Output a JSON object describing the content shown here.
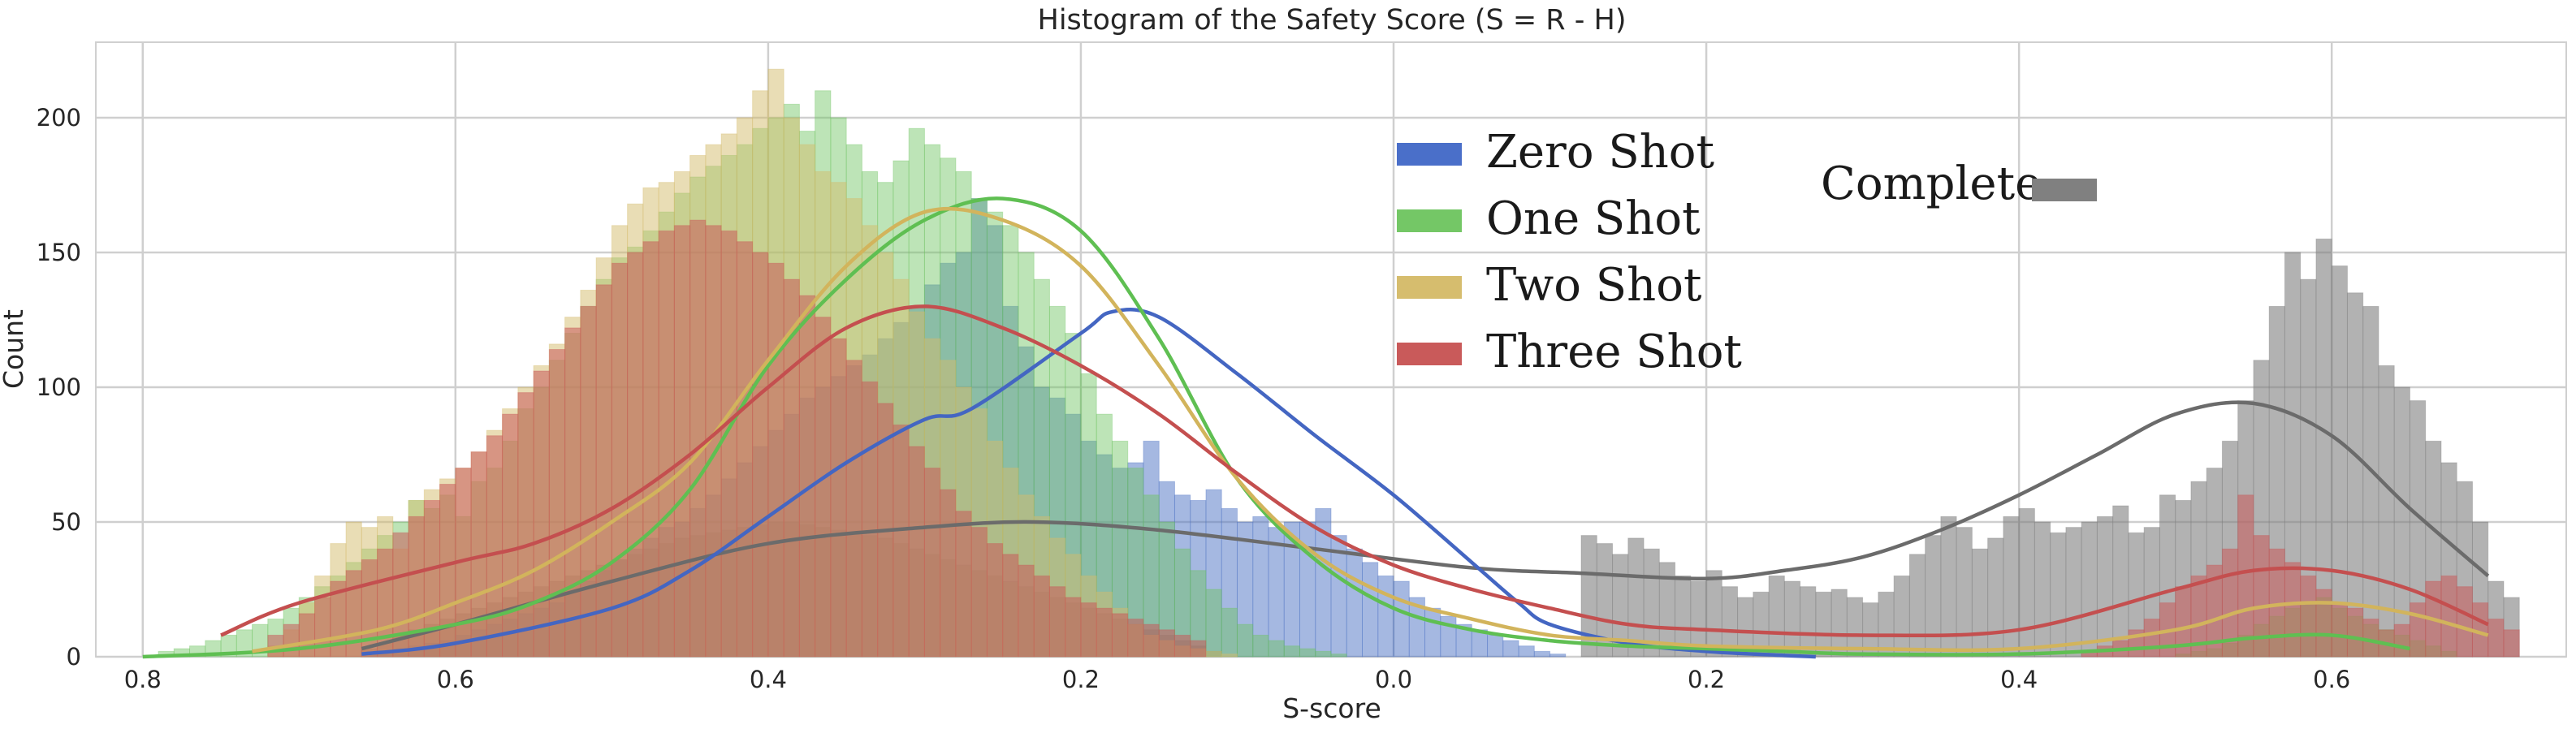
{
  "chart_data": {
    "type": "histogram",
    "title": "Histogram of the Safety Score (S = R - H)",
    "xlabel": "S-score",
    "ylabel": "Count",
    "xlim": [
      -0.83,
      0.75
    ],
    "ylim": [
      0,
      228
    ],
    "grid": true,
    "background": "#ffffff",
    "x_ticks": [
      {
        "value": -0.8,
        "label": "0.8"
      },
      {
        "value": -0.6,
        "label": "0.6"
      },
      {
        "value": -0.4,
        "label": "0.4"
      },
      {
        "value": -0.2,
        "label": "0.2"
      },
      {
        "value": 0.0,
        "label": "0.0"
      },
      {
        "value": 0.2,
        "label": "0.2"
      },
      {
        "value": 0.4,
        "label": "0.4"
      },
      {
        "value": 0.6,
        "label": "0.6"
      }
    ],
    "y_ticks": [
      {
        "value": 0,
        "label": "0"
      },
      {
        "value": 50,
        "label": "50"
      },
      {
        "value": 100,
        "label": "100"
      },
      {
        "value": 150,
        "label": "150"
      },
      {
        "value": 200,
        "label": "200"
      }
    ],
    "legends": [
      {
        "position": "upper-center",
        "entries": [
          "Zero Shot",
          "One Shot",
          "Two Shot",
          "Three Shot"
        ]
      },
      {
        "position": "upper-right",
        "entries": [
          "Complete"
        ]
      }
    ],
    "series": [
      {
        "name": "Complete",
        "color": "#7f7f7f",
        "bin_width": 0.01,
        "x_start": -0.66,
        "counts": [
          3,
          5,
          8,
          10,
          12,
          14,
          16,
          18,
          20,
          22,
          24,
          26,
          28,
          30,
          32,
          34,
          36,
          38,
          40,
          42,
          44,
          45,
          46,
          47,
          48,
          49,
          50,
          50,
          49,
          48,
          47,
          46,
          45,
          44,
          42,
          40,
          38,
          36,
          34,
          32,
          30,
          28,
          26,
          24,
          22,
          20,
          18,
          16,
          14,
          12,
          10,
          8,
          6,
          4,
          2,
          0
        ],
        "kde_x": [
          -0.66,
          -0.6,
          -0.5,
          -0.4,
          -0.3,
          -0.23,
          -0.15,
          -0.05,
          0.05,
          0.12,
          0.2,
          0.25,
          0.3,
          0.35,
          0.4,
          0.45,
          0.5,
          0.55,
          0.6,
          0.65,
          0.7
        ],
        "kde_y": [
          3,
          12,
          28,
          42,
          48,
          50,
          47,
          40,
          33,
          31,
          29,
          32,
          37,
          47,
          60,
          75,
          90,
          94,
          82,
          55,
          30
        ]
      },
      {
        "name": "Complete (right)",
        "color": "#7f7f7f",
        "bin_width": 0.01,
        "x_start": 0.12,
        "counts": [
          45,
          42,
          38,
          44,
          40,
          35,
          30,
          28,
          32,
          26,
          22,
          24,
          30,
          28,
          26,
          24,
          25,
          22,
          20,
          24,
          30,
          38,
          45,
          52,
          48,
          40,
          44,
          52,
          55,
          50,
          46,
          48,
          50,
          52,
          56,
          46,
          48,
          60,
          58,
          65,
          70,
          80,
          95,
          110,
          130,
          150,
          140,
          155,
          145,
          135,
          130,
          108,
          100,
          95,
          80,
          72,
          65,
          50,
          28,
          22
        ],
        "kde_x": [],
        "kde_y": []
      },
      {
        "name": "Zero Shot",
        "color": "#4c72c4",
        "bin_width": 0.01,
        "x_start": -0.66,
        "counts": [
          1,
          2,
          3,
          4,
          5,
          6,
          8,
          10,
          12,
          14,
          16,
          18,
          20,
          24,
          28,
          32,
          36,
          40,
          44,
          48,
          50,
          55,
          60,
          66,
          72,
          78,
          84,
          90,
          96,
          100,
          104,
          108,
          112,
          118,
          124,
          130,
          138,
          146,
          150,
          170,
          160,
          130,
          115,
          100,
          96,
          90,
          80,
          75,
          70,
          72,
          80,
          65,
          60,
          58,
          62,
          55,
          50,
          52,
          48,
          50,
          50,
          55,
          45,
          40,
          35,
          30,
          28,
          22,
          18,
          15,
          12,
          10,
          8,
          6,
          4,
          2,
          1
        ],
        "kde_x": [
          -0.66,
          -0.6,
          -0.5,
          -0.45,
          -0.4,
          -0.35,
          -0.3,
          -0.27,
          -0.2,
          -0.18,
          -0.15,
          -0.1,
          -0.05,
          0.0,
          0.05,
          0.08,
          0.1,
          0.15,
          0.2,
          0.25,
          0.27
        ],
        "kde_y": [
          1,
          5,
          18,
          32,
          52,
          72,
          88,
          92,
          120,
          128,
          126,
          105,
          82,
          60,
          35,
          20,
          12,
          5,
          2,
          0.5,
          0
        ]
      },
      {
        "name": "One Shot",
        "color": "#6cc35f",
        "bin_width": 0.01,
        "x_start": -0.79,
        "counts": [
          2,
          3,
          4,
          6,
          8,
          10,
          12,
          14,
          18,
          22,
          26,
          30,
          35,
          40,
          45,
          50,
          58,
          55,
          60,
          52,
          65,
          70,
          80,
          92,
          100,
          110,
          120,
          130,
          140,
          148,
          152,
          158,
          165,
          172,
          178,
          182,
          186,
          190,
          196,
          200,
          205,
          195,
          210,
          200,
          190,
          180,
          176,
          184,
          196,
          190,
          185,
          180,
          170,
          165,
          160,
          150,
          140,
          130,
          120,
          105,
          90,
          80,
          70,
          60,
          50,
          40,
          32,
          25,
          18,
          12,
          8,
          6,
          4,
          3,
          2,
          1
        ],
        "kde_x": [
          -0.8,
          -0.7,
          -0.6,
          -0.55,
          -0.5,
          -0.45,
          -0.4,
          -0.35,
          -0.3,
          -0.25,
          -0.2,
          -0.15,
          -0.1,
          -0.05,
          0.0,
          0.05,
          0.1,
          0.15,
          0.2,
          0.25,
          0.3,
          0.4,
          0.5,
          0.55,
          0.6,
          0.65
        ],
        "kde_y": [
          0,
          3,
          12,
          20,
          35,
          62,
          108,
          140,
          162,
          170,
          158,
          118,
          66,
          36,
          18,
          10,
          6,
          4,
          3,
          2,
          1,
          1,
          4,
          7,
          8,
          3
        ],
        "right_counts": [
          0,
          0,
          1,
          2,
          3,
          5,
          8,
          12,
          15,
          18,
          20,
          22,
          18,
          15,
          12,
          10,
          8,
          6,
          4,
          2
        ],
        "right_x_start": 0.48
      },
      {
        "name": "Two Shot",
        "color": "#d4bb6b",
        "bin_width": 0.01,
        "x_start": -0.72,
        "counts": [
          4,
          10,
          20,
          30,
          42,
          50,
          48,
          52,
          40,
          58,
          62,
          66,
          70,
          76,
          84,
          92,
          100,
          108,
          116,
          126,
          136,
          148,
          160,
          168,
          174,
          176,
          180,
          186,
          190,
          194,
          200,
          210,
          218,
          200,
          190,
          180,
          176,
          170,
          160,
          150,
          140,
          128,
          118,
          110,
          100,
          92,
          80,
          70,
          60,
          52,
          44,
          38,
          30,
          24,
          18,
          12,
          8,
          6,
          4,
          3,
          2,
          1
        ],
        "kde_x": [
          -0.73,
          -0.65,
          -0.6,
          -0.55,
          -0.5,
          -0.45,
          -0.4,
          -0.35,
          -0.3,
          -0.25,
          -0.2,
          -0.15,
          -0.1,
          -0.05,
          0.0,
          0.05,
          0.1,
          0.15,
          0.2,
          0.3,
          0.4,
          0.5,
          0.55,
          0.6,
          0.65,
          0.7
        ],
        "kde_y": [
          2,
          10,
          20,
          32,
          50,
          72,
          110,
          145,
          165,
          162,
          145,
          108,
          66,
          38,
          22,
          14,
          8,
          6,
          4,
          3,
          3,
          10,
          18,
          20,
          16,
          8
        ]
      },
      {
        "name": "Three Shot",
        "color": "#c85a5a",
        "bin_width": 0.01,
        "x_start": -0.72,
        "counts": [
          8,
          12,
          16,
          22,
          28,
          32,
          36,
          40,
          46,
          52,
          58,
          64,
          70,
          76,
          82,
          90,
          98,
          106,
          114,
          122,
          130,
          138,
          146,
          150,
          154,
          158,
          160,
          162,
          160,
          158,
          154,
          150,
          146,
          140,
          134,
          126,
          118,
          110,
          102,
          94,
          86,
          78,
          70,
          62,
          54,
          48,
          42,
          38,
          34,
          30,
          26,
          22,
          20,
          18,
          16,
          14,
          12,
          10,
          8,
          6
        ],
        "kde_x": [
          -0.75,
          -0.7,
          -0.6,
          -0.55,
          -0.5,
          -0.45,
          -0.4,
          -0.35,
          -0.3,
          -0.25,
          -0.2,
          -0.15,
          -0.1,
          -0.05,
          0.0,
          0.05,
          0.1,
          0.15,
          0.2,
          0.3,
          0.4,
          0.5,
          0.55,
          0.6,
          0.65,
          0.7
        ],
        "kde_y": [
          8,
          20,
          35,
          42,
          55,
          75,
          100,
          122,
          130,
          122,
          108,
          90,
          68,
          48,
          34,
          25,
          18,
          12,
          10,
          8,
          10,
          25,
          32,
          32,
          25,
          12
        ],
        "right_counts": [
          2,
          4,
          6,
          10,
          14,
          20,
          26,
          30,
          34,
          40,
          60,
          45,
          40,
          35,
          30,
          25,
          20,
          18,
          14,
          10,
          12,
          20,
          28,
          30,
          26,
          20,
          14,
          10
        ],
        "right_x_start": 0.44
      }
    ]
  }
}
